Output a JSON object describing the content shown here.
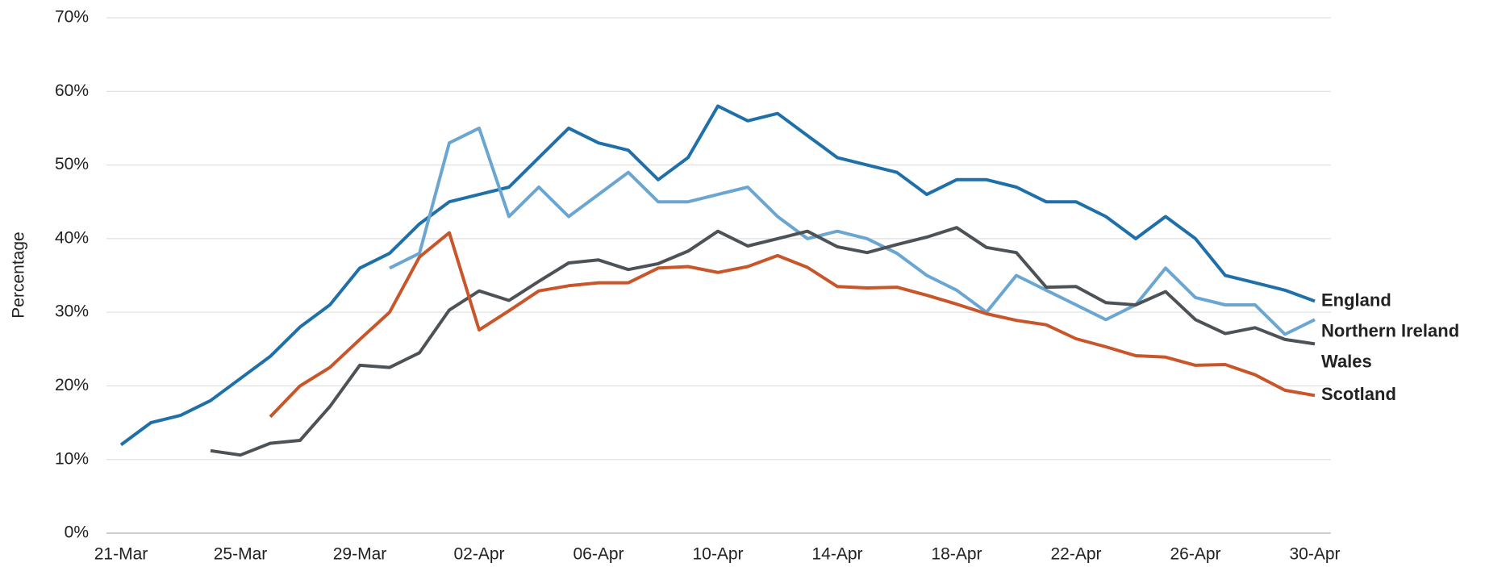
{
  "chart_data": {
    "type": "line",
    "y_label": "Percentage",
    "categories": [
      "21-Mar",
      null,
      null,
      null,
      "25-Mar",
      null,
      null,
      null,
      "29-Mar",
      null,
      null,
      null,
      "02-Apr",
      null,
      null,
      null,
      "06-Apr",
      null,
      null,
      null,
      "10-Apr",
      null,
      null,
      null,
      "14-Apr",
      null,
      null,
      null,
      "18-Apr",
      null,
      null,
      null,
      "22-Apr",
      null,
      null,
      null,
      "26-Apr",
      null,
      null,
      null,
      "30-Apr"
    ],
    "ylim": [
      0,
      70
    ],
    "yticks": [
      {
        "value": 0,
        "label": "0%"
      },
      {
        "value": 10,
        "label": "10%"
      },
      {
        "value": 20,
        "label": "20%"
      },
      {
        "value": 30,
        "label": "30%"
      },
      {
        "value": 40,
        "label": "40%"
      },
      {
        "value": 50,
        "label": "50%"
      },
      {
        "value": 60,
        "label": "60%"
      },
      {
        "value": 70,
        "label": "70%"
      }
    ],
    "grid": true,
    "series": [
      {
        "name": "England",
        "color": "#1f6fa8",
        "values": [
          12,
          15,
          16,
          18,
          21,
          24,
          28,
          31,
          36,
          38,
          42,
          45,
          46,
          47,
          51,
          55,
          53,
          52,
          48,
          51,
          58,
          56,
          57,
          54,
          51,
          50,
          49,
          46,
          48,
          48,
          47,
          45,
          45,
          43,
          40,
          43,
          40,
          35,
          34,
          33,
          31.5
        ]
      },
      {
        "name": "Northern Ireland",
        "color": "#6aa6d1",
        "values": [
          null,
          null,
          null,
          null,
          null,
          null,
          null,
          null,
          null,
          36,
          38,
          53,
          55,
          43,
          47,
          43,
          46,
          49,
          45,
          45,
          46,
          47,
          43,
          40,
          41,
          40,
          38,
          35,
          33,
          30,
          35,
          33,
          31,
          29,
          31,
          36,
          32,
          31,
          31,
          27,
          29
        ]
      },
      {
        "name": "Wales",
        "color": "#4d5257",
        "values": [
          null,
          null,
          null,
          11.2,
          10.6,
          12.2,
          12.6,
          17.2,
          22.8,
          22.5,
          24.5,
          30.3,
          32.9,
          31.6,
          34.2,
          36.7,
          37.1,
          35.8,
          36.6,
          38.3,
          41,
          39,
          40,
          41,
          38.9,
          38.1,
          39.2,
          40.2,
          41.5,
          38.8,
          38.1,
          33.4,
          33.5,
          31.3,
          31,
          32.8,
          29,
          27.1,
          27.9,
          26.3,
          25.7
        ]
      },
      {
        "name": "Scotland",
        "color": "#c8562a",
        "values": [
          null,
          null,
          null,
          null,
          null,
          15.8,
          20,
          22.5,
          26.3,
          30,
          37.5,
          40.8,
          27.6,
          30.2,
          32.9,
          33.6,
          34,
          34,
          36,
          36.2,
          35.4,
          36.2,
          37.7,
          36.1,
          33.5,
          33.3,
          33.4,
          32.3,
          31.1,
          29.8,
          28.9,
          28.3,
          26.4,
          25.3,
          24.1,
          23.9,
          22.8,
          22.9,
          21.5,
          19.4,
          18.7
        ]
      }
    ]
  }
}
